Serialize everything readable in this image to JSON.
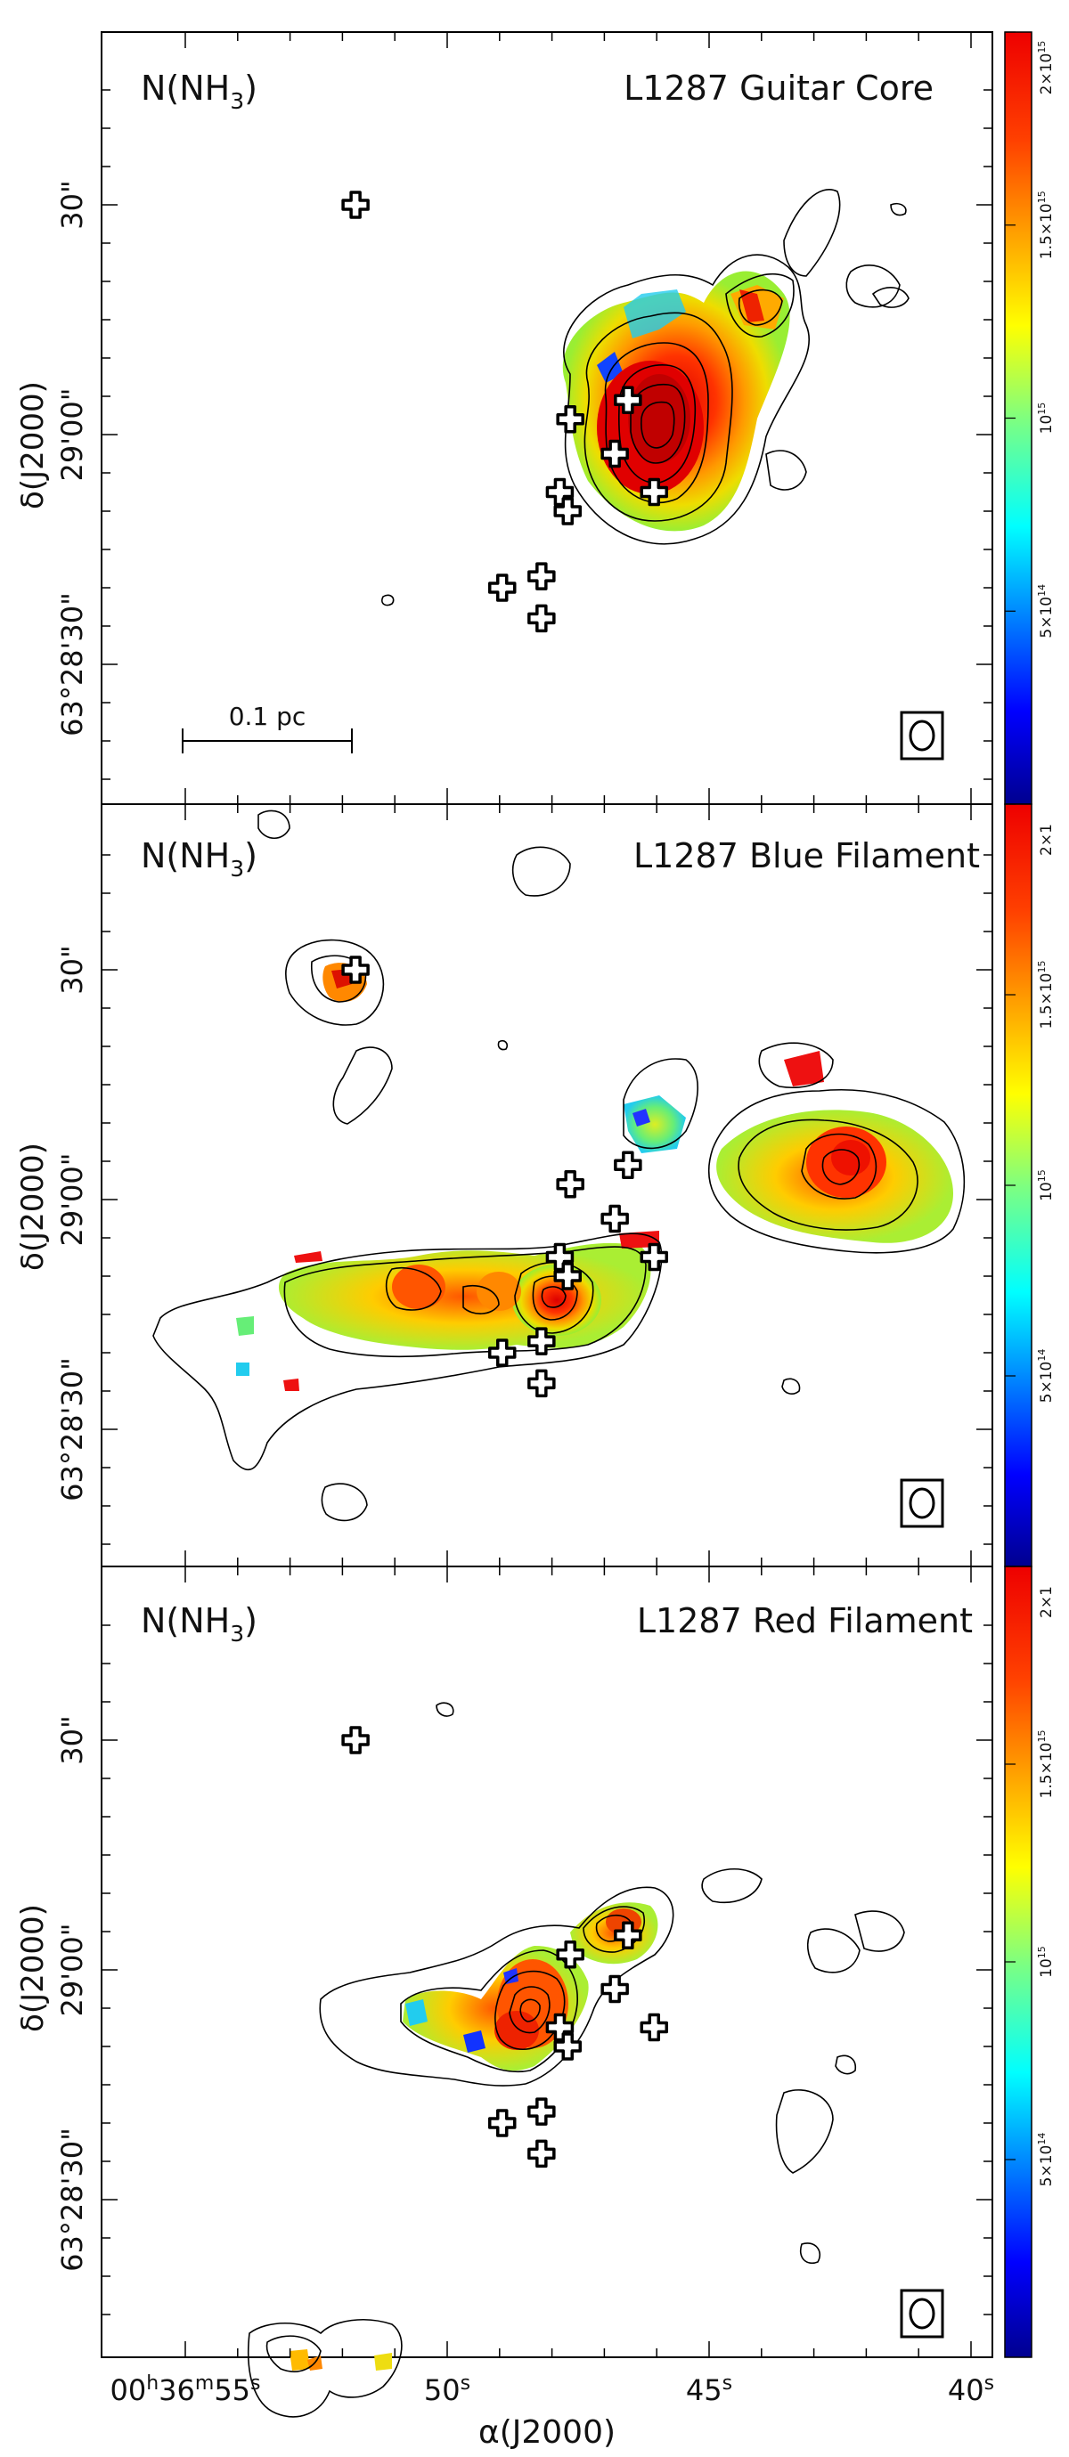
{
  "chart_data": [
    {
      "type": "heatmap",
      "quantity_label": "N(NH",
      "quantity_sub": "3",
      "quantity_close": ")",
      "title": "L1287 Guitar Core",
      "ylabel": "δ(J2000)",
      "y_ticks": [
        {
          "value": 30,
          "label": "30",
          "prefix": "\""
        },
        {
          "value": 0,
          "label": "29'00",
          "prefix": "\""
        },
        {
          "value": -30,
          "label": "63°28'30",
          "prefix": "\""
        }
      ],
      "scalebar_label": "0.1 pc",
      "color_scale": {
        "min": 0,
        "max": 2000000000000000.0,
        "labels": [
          "2×10",
          "1.5×10",
          "10",
          "5×10"
        ],
        "exponents": [
          "15",
          "15",
          "15",
          "14"
        ],
        "values": [
          2000000000000000.0,
          1500000000000000.0,
          1000000000000000.0,
          500000000000000.0
        ]
      },
      "sources": [
        {
          "ra_s": 51.75,
          "dec": 30
        },
        {
          "ra_s": 46.55,
          "dec": 4.5
        },
        {
          "ra_s": 47.65,
          "dec": 2
        },
        {
          "ra_s": 46.8,
          "dec": -2.5
        },
        {
          "ra_s": 47.85,
          "dec": -7.5
        },
        {
          "ra_s": 46.05,
          "dec": -7.5
        },
        {
          "ra_s": 47.7,
          "dec": -10
        },
        {
          "ra_s": 48.2,
          "dec": -18.5
        },
        {
          "ra_s": 48.95,
          "dec": -20
        },
        {
          "ra_s": 48.2,
          "dec": -24
        }
      ]
    },
    {
      "type": "heatmap",
      "quantity_label": "N(NH",
      "quantity_sub": "3",
      "quantity_close": ")",
      "title": "L1287 Blue Filament",
      "ylabel": "δ(J2000)",
      "y_ticks": [
        {
          "value": 30,
          "label": "30",
          "prefix": "\""
        },
        {
          "value": 0,
          "label": "29'00",
          "prefix": "\""
        },
        {
          "value": -30,
          "label": "63°28'30",
          "prefix": "\""
        }
      ],
      "color_scale": {
        "min": 0,
        "max": 2000000000000000.0,
        "labels": [
          "2×1",
          "1.5×10",
          "10",
          "5×10"
        ],
        "exponents": [
          "",
          "15",
          "15",
          "14"
        ],
        "values": [
          2000000000000000.0,
          1500000000000000.0,
          1000000000000000.0,
          500000000000000.0
        ]
      },
      "sources": [
        {
          "ra_s": 51.75,
          "dec": 30
        },
        {
          "ra_s": 46.55,
          "dec": 4.5
        },
        {
          "ra_s": 47.65,
          "dec": 2
        },
        {
          "ra_s": 46.8,
          "dec": -2.5
        },
        {
          "ra_s": 47.85,
          "dec": -7.5
        },
        {
          "ra_s": 46.05,
          "dec": -7.5
        },
        {
          "ra_s": 47.7,
          "dec": -10
        },
        {
          "ra_s": 48.2,
          "dec": -18.5
        },
        {
          "ra_s": 48.95,
          "dec": -20
        },
        {
          "ra_s": 48.2,
          "dec": -24
        }
      ]
    },
    {
      "type": "heatmap",
      "quantity_label": "N(NH",
      "quantity_sub": "3",
      "quantity_close": ")",
      "title": "L1287 Red Filament",
      "xlabel": "α(J2000)",
      "ylabel": "δ(J2000)",
      "x_ticks": [
        {
          "value": 55,
          "label": "00h36m55s"
        },
        {
          "value": 50,
          "label": "50s"
        },
        {
          "value": 45,
          "label": "45s"
        },
        {
          "value": 40,
          "label": "40s"
        }
      ],
      "y_ticks": [
        {
          "value": 30,
          "label": "30",
          "prefix": "\""
        },
        {
          "value": 0,
          "label": "29'00",
          "prefix": "\""
        },
        {
          "value": -30,
          "label": "63°28'30",
          "prefix": "\""
        }
      ],
      "color_scale": {
        "min": 0,
        "max": 2000000000000000.0,
        "labels": [
          "2×1",
          "1.5×10",
          "10",
          "5×10"
        ],
        "exponents": [
          "",
          "15",
          "15",
          "14"
        ],
        "values": [
          2000000000000000.0,
          1500000000000000.0,
          1000000000000000.0,
          500000000000000.0
        ]
      },
      "sources": [
        {
          "ra_s": 51.75,
          "dec": 30
        },
        {
          "ra_s": 46.55,
          "dec": 4.5
        },
        {
          "ra_s": 47.65,
          "dec": 2
        },
        {
          "ra_s": 46.8,
          "dec": -2.5
        },
        {
          "ra_s": 47.85,
          "dec": -7.5
        },
        {
          "ra_s": 46.05,
          "dec": -7.5
        },
        {
          "ra_s": 47.7,
          "dec": -10
        },
        {
          "ra_s": 48.2,
          "dec": -18.5
        },
        {
          "ra_s": 48.95,
          "dec": -20
        },
        {
          "ra_s": 48.2,
          "dec": -24
        }
      ]
    }
  ]
}
